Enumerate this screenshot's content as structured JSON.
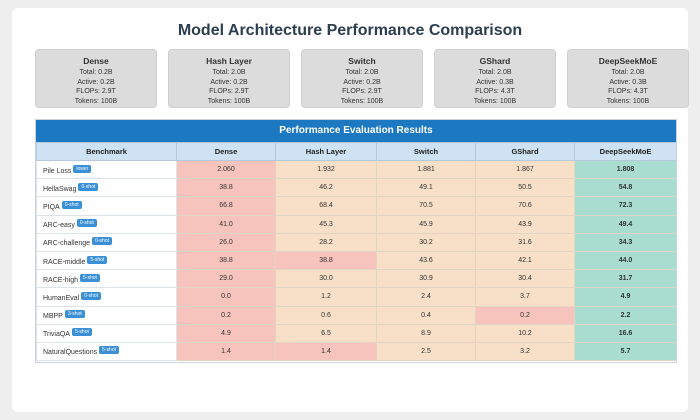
{
  "title": "Model Architecture Performance Comparison",
  "cards": [
    {
      "name": "Dense",
      "total": "Total: 0.2B",
      "active": "Active: 0.2B",
      "flops": "FLOPs: 2.9T",
      "tokens": "Tokens: 100B"
    },
    {
      "name": "Hash Layer",
      "total": "Total: 2.0B",
      "active": "Active: 0.2B",
      "flops": "FLOPs: 2.9T",
      "tokens": "Tokens: 100B"
    },
    {
      "name": "Switch",
      "total": "Total: 2.0B",
      "active": "Active: 0.2B",
      "flops": "FLOPs: 2.9T",
      "tokens": "Tokens: 100B"
    },
    {
      "name": "GShard",
      "total": "Total: 2.0B",
      "active": "Active: 0.3B",
      "flops": "FLOPs: 4.3T",
      "tokens": "Tokens: 100B"
    },
    {
      "name": "DeepSeekMoE",
      "total": "Total: 2.0B",
      "active": "Active: 0.3B",
      "flops": "FLOPs: 4.3T",
      "tokens": "Tokens: 100B"
    }
  ],
  "results": {
    "title": "Performance Evaluation Results",
    "headers": [
      "Benchmark",
      "Dense",
      "Hash Layer",
      "Switch",
      "GShard",
      "DeepSeekMoE"
    ],
    "colors": {
      "worst": "#f7c4bd",
      "mid": "#f8dfc8",
      "best": "#a9ddd0"
    },
    "rows": [
      {
        "bench": "Pile Loss",
        "tag": "lower",
        "values": [
          "2.060",
          "1.932",
          "1.881",
          "1.867",
          "1.808"
        ],
        "worst": [
          0
        ],
        "best": 4
      },
      {
        "bench": "HellaSwag",
        "tag": "0-shot",
        "values": [
          "38.8",
          "46.2",
          "49.1",
          "50.5",
          "54.8"
        ],
        "worst": [
          0
        ],
        "best": 4
      },
      {
        "bench": "PIQA",
        "tag": "0-shot",
        "values": [
          "66.8",
          "68.4",
          "70.5",
          "70.6",
          "72.3"
        ],
        "worst": [
          0
        ],
        "best": 4
      },
      {
        "bench": "ARC-easy",
        "tag": "0-shot",
        "values": [
          "41.0",
          "45.3",
          "45.9",
          "43.9",
          "49.4"
        ],
        "worst": [
          0
        ],
        "best": 4
      },
      {
        "bench": "ARC-challenge",
        "tag": "0-shot",
        "values": [
          "26.0",
          "28.2",
          "30.2",
          "31.6",
          "34.3"
        ],
        "worst": [
          0
        ],
        "best": 4
      },
      {
        "bench": "RACE-middle",
        "tag": "5-shot",
        "values": [
          "38.8",
          "38.8",
          "43.6",
          "42.1",
          "44.0"
        ],
        "worst": [
          0,
          1
        ],
        "best": 4
      },
      {
        "bench": "RACE-high",
        "tag": "5-shot",
        "values": [
          "29.0",
          "30.0",
          "30.9",
          "30.4",
          "31.7"
        ],
        "worst": [
          0
        ],
        "best": 4
      },
      {
        "bench": "HumanEval",
        "tag": "0-shot",
        "values": [
          "0.0",
          "1.2",
          "2.4",
          "3.7",
          "4.9"
        ],
        "worst": [
          0
        ],
        "best": 4
      },
      {
        "bench": "MBPP",
        "tag": "3-shot",
        "values": [
          "0.2",
          "0.6",
          "0.4",
          "0.2",
          "2.2"
        ],
        "worst": [
          0,
          3
        ],
        "best": 4
      },
      {
        "bench": "TriviaQA",
        "tag": "5-shot",
        "values": [
          "4.9",
          "6.5",
          "8.9",
          "10.2",
          "16.6"
        ],
        "worst": [
          0
        ],
        "best": 4
      },
      {
        "bench": "NaturalQuestions",
        "tag": "5-shot",
        "values": [
          "1.4",
          "1.4",
          "2.5",
          "3.2",
          "5.7"
        ],
        "worst": [
          0,
          1
        ],
        "best": 4
      }
    ]
  }
}
